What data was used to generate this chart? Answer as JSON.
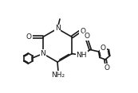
{
  "figsize": [
    1.73,
    1.17
  ],
  "dpi": 100,
  "lc": "#1a1a1a",
  "lw": 1.2,
  "fs": 6.5,
  "xlim": [
    0,
    1.73
  ],
  "ylim": [
    0,
    1.17
  ]
}
